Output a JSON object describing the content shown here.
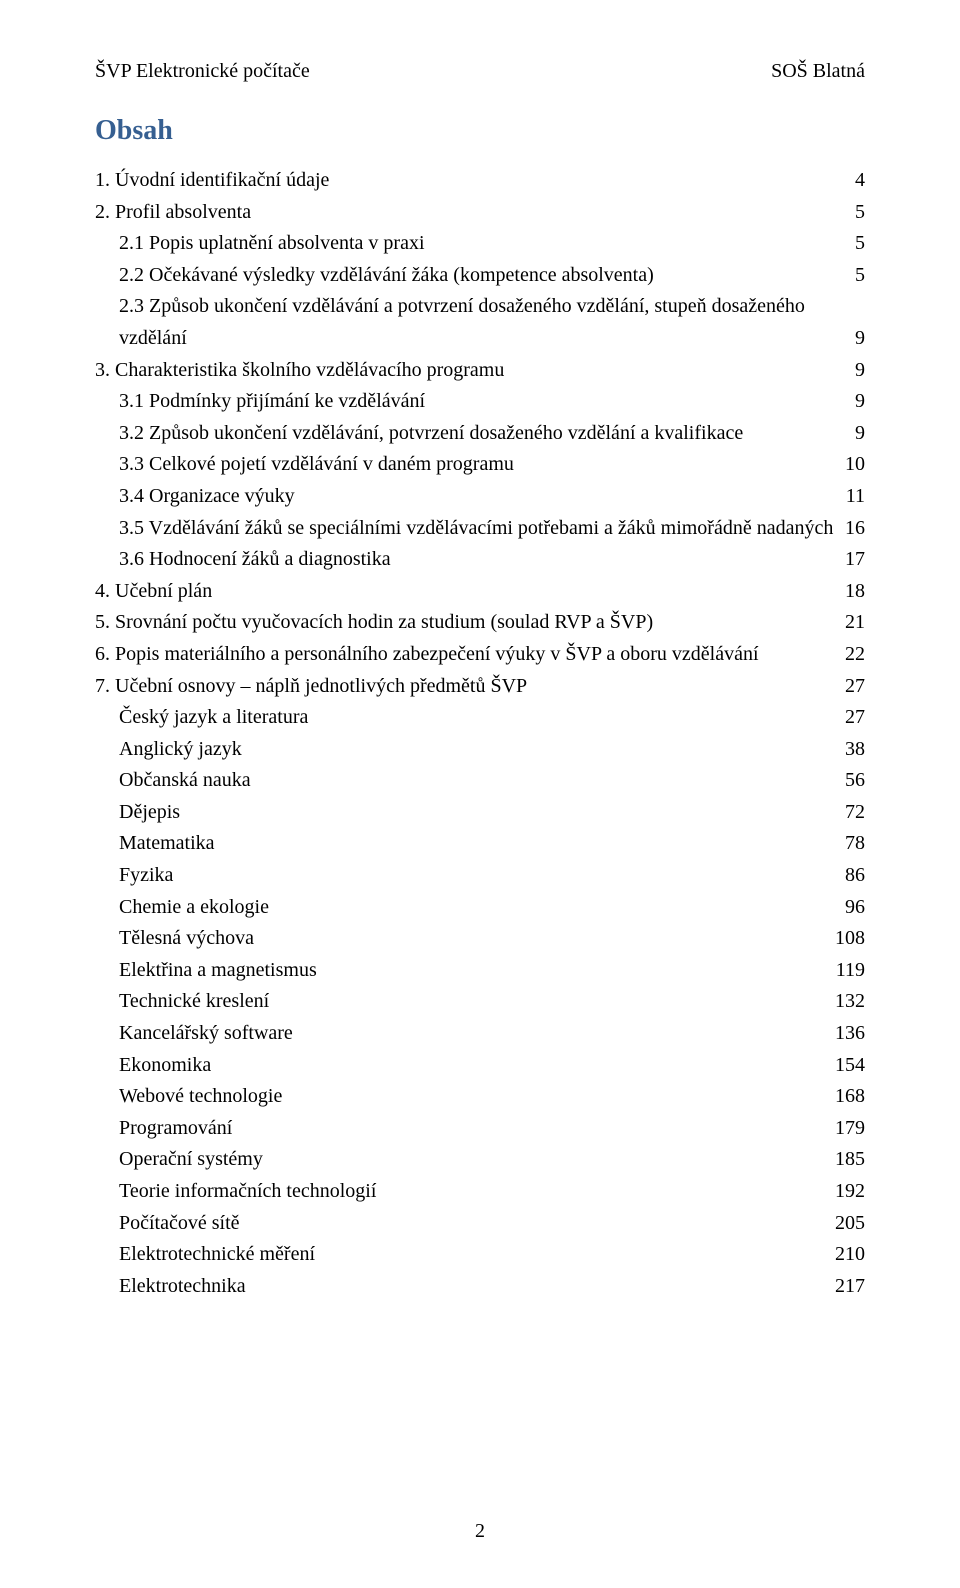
{
  "header": {
    "left": "ŠVP Elektronické počítače",
    "right": "SOŠ Blatná"
  },
  "title": "Obsah",
  "page_number": "2",
  "toc": [
    {
      "label": "1. Úvodní identifikační údaje",
      "page": "4",
      "indent": 0
    },
    {
      "label": "2. Profil absolventa",
      "page": "5",
      "indent": 0
    },
    {
      "label": "2.1 Popis uplatnění absolventa v praxi",
      "page": "5",
      "indent": 1
    },
    {
      "label": "2.2 Očekávané výsledky vzdělávání žáka (kompetence absolventa)",
      "page": "5",
      "indent": 1
    },
    {
      "label": "2.3 Způsob ukončení vzdělávání a potvrzení dosaženého vzdělání, stupeň dosaženého vzdělání",
      "page": "9",
      "indent": 1,
      "wrap": true
    },
    {
      "label": "3. Charakteristika školního vzdělávacího programu",
      "page": "9",
      "indent": 0
    },
    {
      "label": "3.1 Podmínky přijímání ke vzdělávání",
      "page": "9",
      "indent": 1
    },
    {
      "label": "3.2 Způsob ukončení vzdělávání, potvrzení dosaženého vzdělání a kvalifikace",
      "page": "9",
      "indent": 1
    },
    {
      "label": "3.3 Celkové pojetí vzdělávání v daném programu",
      "page": "10",
      "indent": 1
    },
    {
      "label": "3.4 Organizace výuky",
      "page": "11",
      "indent": 1
    },
    {
      "label": "3.5 Vzdělávání žáků se speciálními vzdělávacími potřebami a žáků mimořádně nadaných",
      "page": "16",
      "indent": 1,
      "noleader": true
    },
    {
      "label": "3.6 Hodnocení žáků a diagnostika",
      "page": "17",
      "indent": 1
    },
    {
      "label": "4. Učební plán",
      "page": "18",
      "indent": 0
    },
    {
      "label": "5. Srovnání počtu vyučovacích hodin za studium (soulad RVP a ŠVP)",
      "page": "21",
      "indent": 0
    },
    {
      "label": "6. Popis materiálního a personálního zabezpečení výuky v ŠVP a oboru vzdělávání",
      "page": "22",
      "indent": 0
    },
    {
      "label": "7. Učební osnovy – náplň jednotlivých předmětů ŠVP",
      "page": "27",
      "indent": 0
    },
    {
      "label": "Český jazyk a literatura",
      "page": "27",
      "indent": 1
    },
    {
      "label": "Anglický jazyk",
      "page": "38",
      "indent": 1
    },
    {
      "label": "Občanská nauka",
      "page": "56",
      "indent": 1
    },
    {
      "label": "Dějepis",
      "page": "72",
      "indent": 1
    },
    {
      "label": "Matematika",
      "page": "78",
      "indent": 1
    },
    {
      "label": "Fyzika",
      "page": "86",
      "indent": 1
    },
    {
      "label": "Chemie a ekologie",
      "page": "96",
      "indent": 1
    },
    {
      "label": "Tělesná výchova",
      "page": "108",
      "indent": 1
    },
    {
      "label": "Elektřina a magnetismus",
      "page": "119",
      "indent": 1
    },
    {
      "label": "Technické kreslení",
      "page": "132",
      "indent": 1
    },
    {
      "label": "Kancelářský software",
      "page": "136",
      "indent": 1
    },
    {
      "label": "Ekonomika",
      "page": "154",
      "indent": 1
    },
    {
      "label": "Webové technologie",
      "page": "168",
      "indent": 1
    },
    {
      "label": "Programování",
      "page": "179",
      "indent": 1
    },
    {
      "label": "Operační systémy",
      "page": "185",
      "indent": 1
    },
    {
      "label": "Teorie informačních technologií",
      "page": "192",
      "indent": 1
    },
    {
      "label": "Počítačové sítě",
      "page": "205",
      "indent": 1
    },
    {
      "label": "Elektrotechnické měření",
      "page": "210",
      "indent": 1
    },
    {
      "label": "Elektrotechnika",
      "page": "217",
      "indent": 1
    }
  ]
}
